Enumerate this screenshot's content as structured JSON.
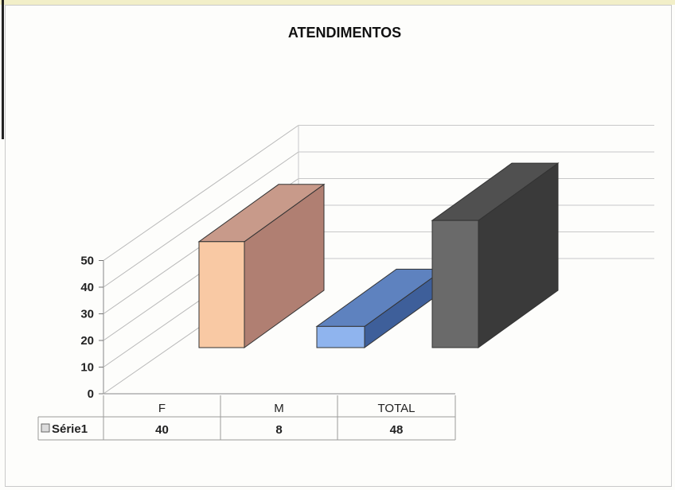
{
  "chart_data": {
    "type": "bar",
    "title": "ATENDIMENTOS",
    "categories": [
      "F",
      "M",
      "TOTAL"
    ],
    "series": [
      {
        "name": "Série1",
        "values": [
          40,
          8,
          48
        ]
      }
    ],
    "ylim": [
      0,
      50
    ],
    "yticks": [
      0,
      10,
      20,
      30,
      40,
      50
    ],
    "grid": true,
    "three_d": true,
    "data_table": true,
    "colors": {
      "F": {
        "front": "#f9c9a4",
        "side": "#b07f72",
        "top": "#c89a8a"
      },
      "M": {
        "front": "#8fb4ee",
        "side": "#3e5f9a",
        "top": "#5e82bf"
      },
      "TOTAL": {
        "front": "#6a6a6a",
        "side": "#3a3a3a",
        "top": "#505050"
      }
    }
  }
}
